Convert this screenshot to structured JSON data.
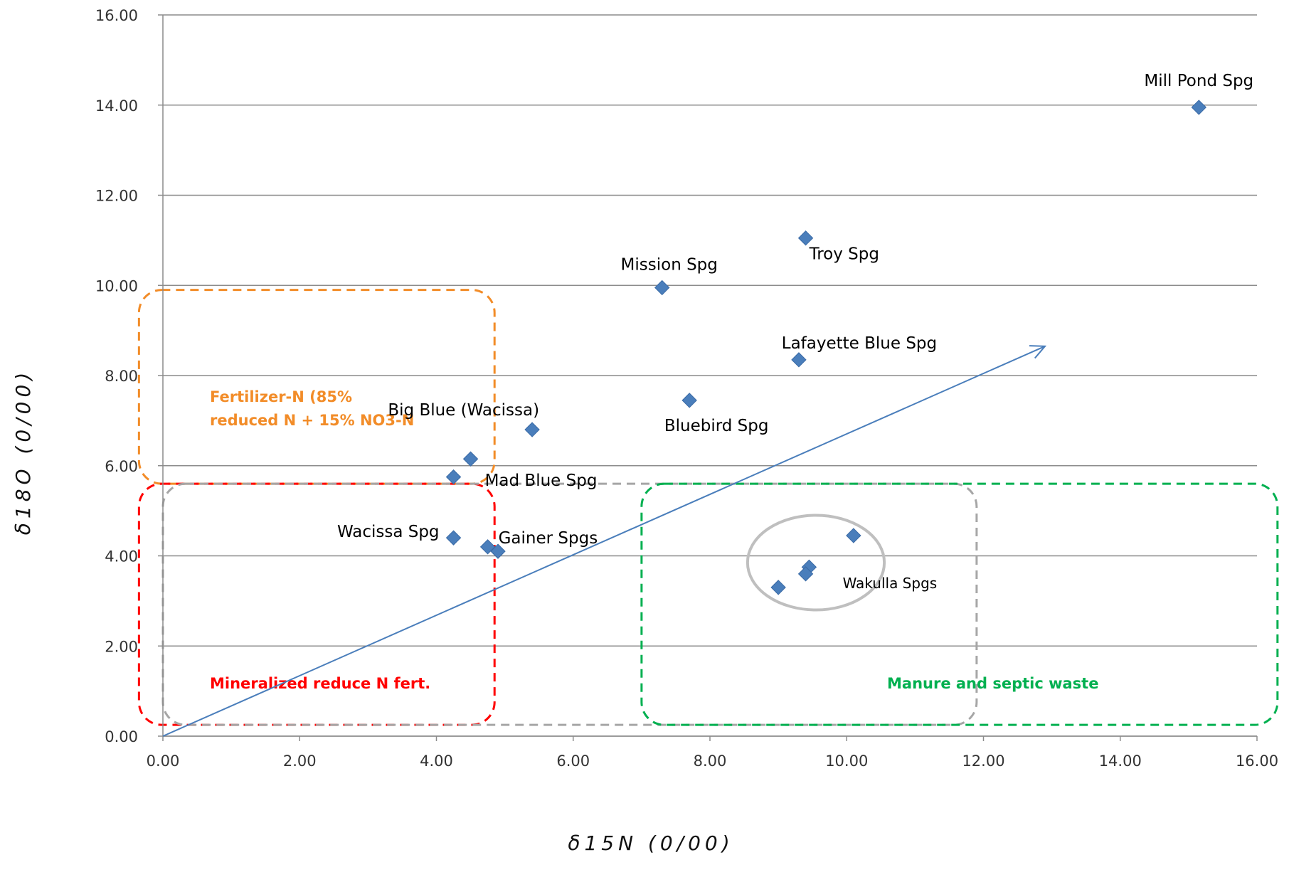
{
  "chart_data": {
    "type": "scatter",
    "xlabel": "δ15N  (0/00)",
    "ylabel": "δ18O  (0/00)",
    "xlim": [
      0,
      16
    ],
    "ylim": [
      0,
      16
    ],
    "x_ticks": [
      "0.00",
      "2.00",
      "4.00",
      "6.00",
      "8.00",
      "10.00",
      "12.00",
      "14.00",
      "16.00"
    ],
    "y_ticks": [
      "0.00",
      "2.00",
      "4.00",
      "6.00",
      "8.00",
      "10.00",
      "12.00",
      "14.00",
      "16.00"
    ],
    "grid": "horizontal",
    "marker_color": "#4a7ebb",
    "points": [
      {
        "x": 15.15,
        "y": 13.95,
        "label": "Mill Pond Spg"
      },
      {
        "x": 9.4,
        "y": 11.05,
        "label": "Troy Spg"
      },
      {
        "x": 7.3,
        "y": 9.95,
        "label": "Mission Spg"
      },
      {
        "x": 9.3,
        "y": 8.35,
        "label": "Lafayette Blue Spg"
      },
      {
        "x": 7.7,
        "y": 7.45,
        "label": "Bluebird Spg"
      },
      {
        "x": 5.4,
        "y": 6.8,
        "label": "Big Blue (Wacissa)"
      },
      {
        "x": 4.5,
        "y": 6.15,
        "label": "Mad Blue Spg"
      },
      {
        "x": 4.25,
        "y": 5.75,
        "label": ""
      },
      {
        "x": 4.25,
        "y": 4.4,
        "label": "Wacissa Spg"
      },
      {
        "x": 4.75,
        "y": 4.2,
        "label": "Gainer Spgs"
      },
      {
        "x": 4.9,
        "y": 4.1,
        "label": ""
      },
      {
        "x": 10.1,
        "y": 4.45,
        "label": ""
      },
      {
        "x": 9.45,
        "y": 3.75,
        "label": ""
      },
      {
        "x": 9.4,
        "y": 3.6,
        "label": "Wakulla Spgs"
      },
      {
        "x": 9.0,
        "y": 3.3,
        "label": ""
      }
    ],
    "trend_arrow": {
      "from": [
        0,
        0
      ],
      "to": [
        12.9,
        8.65
      ],
      "color": "#4a7ebb"
    },
    "regions": [
      {
        "name": "Fertilizer-N (85%",
        "name_line2": "reduced N + 15% NO3-N",
        "color": "#f28c28",
        "x": [
          -0.35,
          4.85
        ],
        "y": [
          5.6,
          9.9
        ]
      },
      {
        "name": "Mineralized reduce N fert.",
        "color": "#ff0000",
        "x": [
          -0.35,
          4.85
        ],
        "y": [
          0.25,
          5.6
        ]
      },
      {
        "name": "",
        "color": "#a6a6a6",
        "x": [
          0.0,
          11.9
        ],
        "y": [
          0.25,
          5.6
        ]
      },
      {
        "name": "Manure and septic waste",
        "color": "#00b050",
        "x": [
          7.0,
          16.3
        ],
        "y": [
          0.25,
          5.6
        ]
      }
    ],
    "cluster_ellipse": {
      "cx": 9.55,
      "cy": 3.85,
      "rx": 1.0,
      "ry": 1.05,
      "color": "#bfbfbf"
    }
  }
}
